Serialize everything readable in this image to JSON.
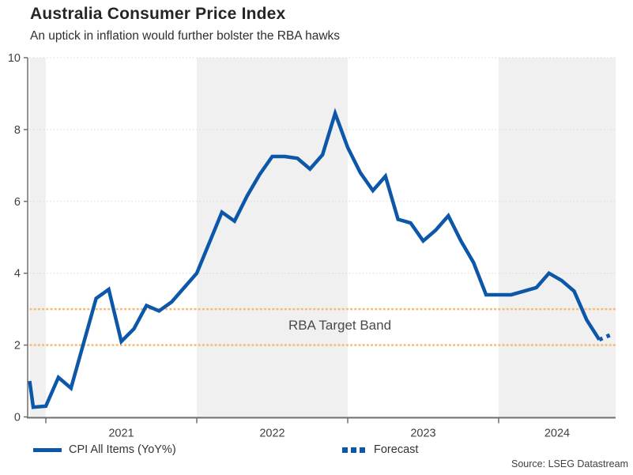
{
  "header": {
    "title": "Australia Consumer Price Index",
    "subtitle": "An uptick in inflation would further bolster the RBA hawks"
  },
  "annotation": "RBA Target Band",
  "source": "Source: LSEG Datastream",
  "legend": [
    {
      "label": "CPI All Items (YoY%)",
      "style": "solid"
    },
    {
      "label": "Forecast",
      "style": "dotted"
    }
  ],
  "colors": {
    "line": "#0d57a9",
    "forecast": "#0d57a9",
    "target_band": "#f7b97c",
    "year_band": "#f0f0f0",
    "grid": "#d9d9d9",
    "axis": "#6e6e6e",
    "tick_text": "#404040"
  },
  "chart_data": {
    "type": "line",
    "title": "Australia Consumer Price Index",
    "xlabel": "",
    "ylabel": "CPI All Items (YoY%)",
    "ylim": [
      0,
      10
    ],
    "y_ticks": [
      0,
      2,
      4,
      6,
      8,
      10
    ],
    "x_tick_labels": [
      "2021",
      "2022",
      "2023",
      "2024"
    ],
    "grid": "dotted-horizontal",
    "shaded_alternate_years": true,
    "target_band": {
      "low": 2,
      "high": 3,
      "label": "RBA Target Band"
    },
    "legend_position": "bottom",
    "series": [
      {
        "name": "CPI All Items (YoY%)",
        "style": "solid",
        "points": [
          [
            "2020-11",
            1.0
          ],
          [
            "2020-12",
            0.27
          ],
          [
            "2021-01",
            0.3
          ],
          [
            "2021-02",
            1.1
          ],
          [
            "2021-03",
            0.8
          ],
          [
            "2021-04",
            2.05
          ],
          [
            "2021-05",
            3.3
          ],
          [
            "2021-06",
            3.55
          ],
          [
            "2021-07",
            2.1
          ],
          [
            "2021-08",
            2.45
          ],
          [
            "2021-09",
            3.1
          ],
          [
            "2021-10",
            2.95
          ],
          [
            "2021-11",
            3.2
          ],
          [
            "2021-12",
            3.6
          ],
          [
            "2022-01",
            4.0
          ],
          [
            "2022-02",
            4.85
          ],
          [
            "2022-03",
            5.7
          ],
          [
            "2022-04",
            5.45
          ],
          [
            "2022-05",
            6.15
          ],
          [
            "2022-06",
            6.75
          ],
          [
            "2022-07",
            7.25
          ],
          [
            "2022-08",
            7.25
          ],
          [
            "2022-09",
            7.2
          ],
          [
            "2022-10",
            6.9
          ],
          [
            "2022-11",
            7.3
          ],
          [
            "2022-12",
            8.45
          ],
          [
            "2023-01",
            7.5
          ],
          [
            "2023-02",
            6.8
          ],
          [
            "2023-03",
            6.3
          ],
          [
            "2023-04",
            6.7
          ],
          [
            "2023-05",
            5.5
          ],
          [
            "2023-06",
            5.4
          ],
          [
            "2023-07",
            4.9
          ],
          [
            "2023-08",
            5.2
          ],
          [
            "2023-09",
            5.6
          ],
          [
            "2023-10",
            4.9
          ],
          [
            "2023-11",
            4.3
          ],
          [
            "2023-12",
            3.4
          ],
          [
            "2024-01",
            3.4
          ],
          [
            "2024-02",
            3.4
          ],
          [
            "2024-03",
            3.5
          ],
          [
            "2024-04",
            3.6
          ],
          [
            "2024-05",
            4.0
          ],
          [
            "2024-06",
            3.8
          ],
          [
            "2024-07",
            3.5
          ],
          [
            "2024-08",
            2.7
          ],
          [
            "2024-09",
            2.15
          ]
        ]
      },
      {
        "name": "Forecast",
        "style": "dotted",
        "points": [
          [
            "2024-09",
            2.15
          ],
          [
            "2024-10",
            2.3
          ]
        ]
      }
    ]
  }
}
